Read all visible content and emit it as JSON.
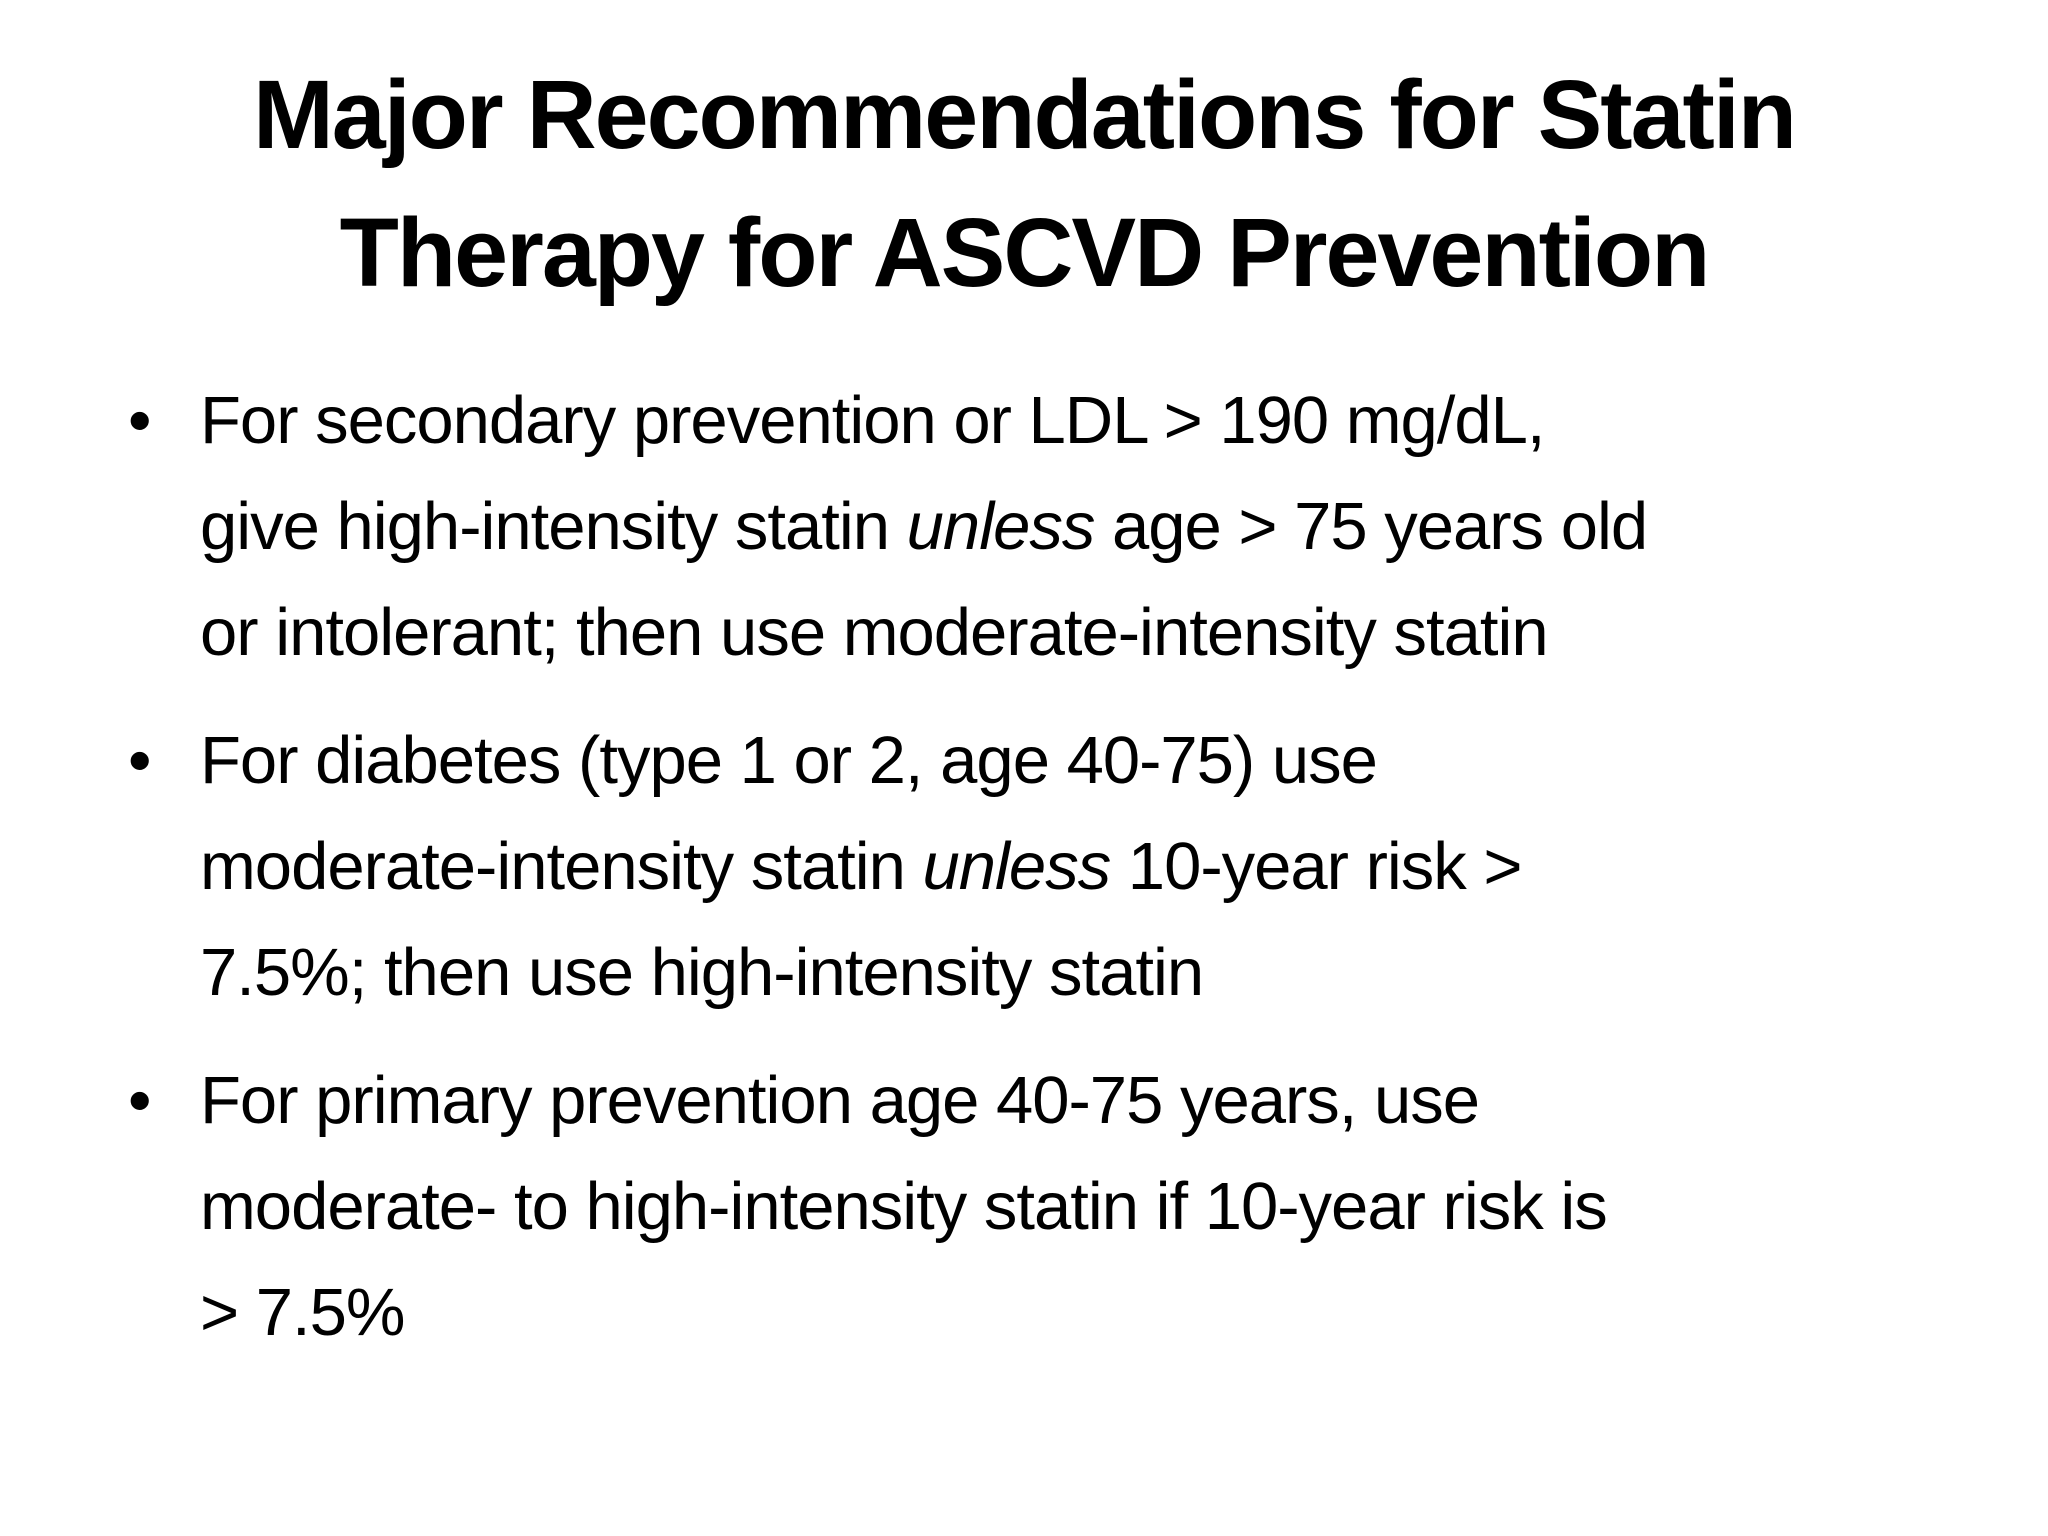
{
  "slide": {
    "background_color": "#ffffff",
    "text_color": "#000000",
    "bullet_glyph": "•",
    "title_lines": [
      "Major Recommendations for Statin",
      "Therapy for ASCVD Prevention"
    ],
    "bullets": [
      {
        "lines": [
          [
            {
              "t": "For secondary prevention or LDL > 190 mg/dL,"
            }
          ],
          [
            {
              "t": "give high-intensity statin "
            },
            {
              "t": "unless",
              "i": true
            },
            {
              "t": " age > 75 years old"
            }
          ],
          [
            {
              "t": "or intolerant; then use moderate-intensity statin"
            }
          ]
        ]
      },
      {
        "lines": [
          [
            {
              "t": "For diabetes (type 1 or 2, age 40-75) use"
            }
          ],
          [
            {
              "t": "moderate-intensity statin "
            },
            {
              "t": "unless",
              "i": true
            },
            {
              "t": " 10-year risk >"
            }
          ],
          [
            {
              "t": "7.5%; then use high-intensity statin"
            }
          ]
        ]
      },
      {
        "lines": [
          [
            {
              "t": "For primary prevention age 40-75 years, use"
            }
          ],
          [
            {
              "t": "moderate- to high-intensity statin if 10-year risk is"
            }
          ],
          [
            {
              "t": "> 7.5%"
            }
          ]
        ]
      }
    ]
  }
}
